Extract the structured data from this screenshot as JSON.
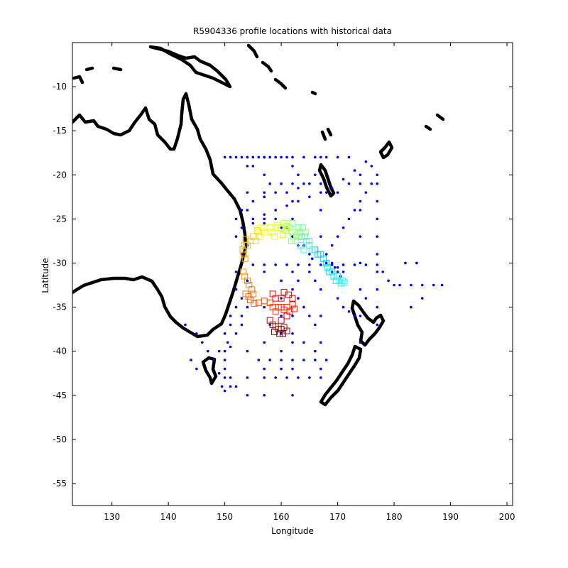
{
  "chart_data": {
    "type": "scatter",
    "title": "R5904336 profile locations with historical data",
    "xlabel": "Longitude",
    "ylabel": "Latitude",
    "xlim": [
      123,
      201
    ],
    "ylim": [
      -57.5,
      -5
    ],
    "xticks": [
      130,
      140,
      150,
      160,
      170,
      180,
      190,
      200
    ],
    "yticks": [
      -10,
      -15,
      -20,
      -25,
      -30,
      -35,
      -40,
      -45,
      -50,
      -55
    ],
    "grid": false,
    "series": [
      {
        "marker": "dot",
        "color": "#0000ff",
        "points": [
          [
            150,
            -18
          ],
          [
            151,
            -18
          ],
          [
            152,
            -18
          ],
          [
            153,
            -18
          ],
          [
            154,
            -18
          ],
          [
            155,
            -18
          ],
          [
            156,
            -18
          ],
          [
            157,
            -18
          ],
          [
            158,
            -18
          ],
          [
            159,
            -18
          ],
          [
            160,
            -18
          ],
          [
            161,
            -18
          ],
          [
            162,
            -18
          ],
          [
            164,
            -18
          ],
          [
            166,
            -18
          ],
          [
            168,
            -18
          ],
          [
            170,
            -18
          ],
          [
            172,
            -18
          ],
          [
            155,
            -19
          ],
          [
            157,
            -20
          ],
          [
            158,
            -21
          ],
          [
            160,
            -21
          ],
          [
            162,
            -19
          ],
          [
            163,
            -20
          ],
          [
            164,
            -21
          ],
          [
            166,
            -20
          ],
          [
            168,
            -22
          ],
          [
            170,
            -22
          ],
          [
            172,
            -21
          ],
          [
            174,
            -20
          ],
          [
            176,
            -19
          ],
          [
            177,
            -20
          ],
          [
            176,
            -21
          ],
          [
            175,
            -22
          ],
          [
            174,
            -23
          ],
          [
            173,
            -24
          ],
          [
            172,
            -25
          ],
          [
            171,
            -26
          ],
          [
            170,
            -27
          ],
          [
            169,
            -28
          ],
          [
            168,
            -29
          ],
          [
            177,
            -21
          ],
          [
            177,
            -23
          ],
          [
            177,
            -25
          ],
          [
            177,
            -27
          ],
          [
            177,
            -29
          ],
          [
            177,
            -31
          ],
          [
            177,
            -33
          ],
          [
            177,
            -35
          ],
          [
            177,
            -37
          ],
          [
            174,
            -21
          ],
          [
            174,
            -24
          ],
          [
            174,
            -27
          ],
          [
            174,
            -30
          ],
          [
            174,
            -33
          ],
          [
            174,
            -36
          ],
          [
            174,
            -39
          ],
          [
            167,
            -18
          ],
          [
            167,
            -21
          ],
          [
            167,
            -24
          ],
          [
            167,
            -27
          ],
          [
            167,
            -33
          ],
          [
            167,
            -36
          ],
          [
            167,
            -39
          ],
          [
            167,
            -42
          ],
          [
            162,
            -21
          ],
          [
            162,
            -23
          ],
          [
            162,
            -25
          ],
          [
            162,
            -33
          ],
          [
            162,
            -36
          ],
          [
            162,
            -39
          ],
          [
            162,
            -42
          ],
          [
            162,
            -45
          ],
          [
            157,
            -18
          ],
          [
            157,
            -22
          ],
          [
            157,
            -25
          ],
          [
            157,
            -31
          ],
          [
            157,
            -35
          ],
          [
            157,
            -39
          ],
          [
            157,
            -42
          ],
          [
            157,
            -45
          ],
          [
            154,
            -19
          ],
          [
            154,
            -22
          ],
          [
            154,
            -24
          ],
          [
            154,
            -40
          ],
          [
            154,
            -43
          ],
          [
            154,
            -45
          ],
          [
            153,
            -24
          ],
          [
            155,
            -23
          ],
          [
            157,
            -22.5
          ],
          [
            159,
            -22
          ],
          [
            161,
            -22
          ],
          [
            163,
            -21.5
          ],
          [
            165,
            -21
          ],
          [
            155,
            -25
          ],
          [
            157,
            -24.5
          ],
          [
            159,
            -24
          ],
          [
            161,
            -23.5
          ],
          [
            163,
            -23
          ],
          [
            165,
            -22.5
          ],
          [
            167,
            -22
          ],
          [
            169,
            -21.5
          ],
          [
            171,
            -20.5
          ],
          [
            173,
            -19.5
          ],
          [
            175,
            -18.5
          ],
          [
            153,
            -26
          ],
          [
            155,
            -25.5
          ],
          [
            157,
            -25.5
          ],
          [
            159,
            -25
          ],
          [
            155,
            -30.2
          ],
          [
            157,
            -30.2
          ],
          [
            159,
            -30.2
          ],
          [
            161,
            -30.2
          ],
          [
            163,
            -30.2
          ],
          [
            165,
            -30.2
          ],
          [
            167,
            -30.2
          ],
          [
            169,
            -30.2
          ],
          [
            171,
            -30.2
          ],
          [
            173,
            -30.2
          ],
          [
            175,
            -30.2
          ],
          [
            177,
            -30.2
          ],
          [
            178,
            -31
          ],
          [
            179,
            -32
          ],
          [
            180,
            -32.5
          ],
          [
            181,
            -32.5
          ],
          [
            183,
            -32.5
          ],
          [
            185,
            -32.5
          ],
          [
            187,
            -32.5
          ],
          [
            188.5,
            -32.5
          ],
          [
            182,
            -30
          ],
          [
            184,
            -30
          ],
          [
            183,
            -35
          ],
          [
            185,
            -34
          ],
          [
            160,
            -32
          ],
          [
            160,
            -34
          ],
          [
            160,
            -36
          ],
          [
            160,
            -38
          ],
          [
            160,
            -40
          ],
          [
            160,
            -42
          ],
          [
            157,
            -43
          ],
          [
            159,
            -43
          ],
          [
            161,
            -43
          ],
          [
            163,
            -43
          ],
          [
            165,
            -43
          ],
          [
            167,
            -43
          ],
          [
            156,
            -41
          ],
          [
            158,
            -41
          ],
          [
            160,
            -41
          ],
          [
            162,
            -41
          ],
          [
            164,
            -41
          ],
          [
            166,
            -41
          ],
          [
            168,
            -41
          ],
          [
            158,
            -37
          ],
          [
            160,
            -38
          ],
          [
            162,
            -38
          ],
          [
            164,
            -39
          ],
          [
            166,
            -40
          ],
          [
            152,
            -35
          ],
          [
            151,
            -36
          ],
          [
            151,
            -37
          ],
          [
            150,
            -38
          ],
          [
            150.5,
            -39
          ],
          [
            151,
            -39.5
          ],
          [
            152,
            -38
          ],
          [
            153,
            -37
          ],
          [
            153,
            -36
          ],
          [
            154,
            -35
          ],
          [
            150,
            -40
          ],
          [
            150,
            -41
          ],
          [
            150,
            -42
          ],
          [
            149,
            -42.5
          ],
          [
            150,
            -43
          ],
          [
            151,
            -43
          ],
          [
            149.5,
            -44
          ],
          [
            150,
            -44.5
          ],
          [
            151,
            -44
          ],
          [
            152,
            -44
          ],
          [
            145,
            -38
          ],
          [
            146,
            -39
          ],
          [
            147,
            -40
          ],
          [
            148,
            -41
          ],
          [
            149,
            -40
          ],
          [
            143,
            -37
          ],
          [
            144,
            -41
          ],
          [
            145,
            -42
          ],
          [
            152,
            -31
          ],
          [
            152,
            -33
          ],
          [
            153,
            -34
          ],
          [
            154,
            -32
          ],
          [
            154,
            -28
          ],
          [
            153,
            -29
          ],
          [
            152,
            -27
          ],
          [
            152,
            -25
          ],
          [
            160,
            -26
          ],
          [
            161,
            -26
          ],
          [
            162,
            -27
          ],
          [
            163,
            -28
          ],
          [
            164,
            -28
          ],
          [
            165,
            -29
          ],
          [
            165.5,
            -29.5
          ],
          [
            168,
            -30
          ],
          [
            169,
            -30
          ],
          [
            170,
            -30.5
          ],
          [
            170,
            -31
          ],
          [
            170.5,
            -31.5
          ],
          [
            171,
            -31
          ],
          [
            169,
            -31
          ],
          [
            169.5,
            -30.5
          ],
          [
            163,
            -34
          ],
          [
            164,
            -35
          ],
          [
            165,
            -36
          ],
          [
            166,
            -37
          ],
          [
            170,
            -34
          ],
          [
            171,
            -35
          ],
          [
            172,
            -35.5
          ],
          [
            173,
            -36
          ],
          [
            175,
            -34
          ],
          [
            162,
            -31
          ],
          [
            163,
            -32
          ],
          [
            165,
            -31
          ],
          [
            166,
            -32
          ]
        ]
      },
      {
        "marker": "square",
        "colormap": "jet",
        "points": [
          [
            166,
            -28.5
          ],
          [
            166.5,
            -29
          ],
          [
            167,
            -29
          ],
          [
            167.5,
            -29.5
          ],
          [
            168,
            -30
          ],
          [
            168.2,
            -30.5
          ],
          [
            168.5,
            -31
          ],
          [
            169,
            -31
          ],
          [
            169.3,
            -31.5
          ],
          [
            169.7,
            -32
          ],
          [
            170,
            -31.5
          ],
          [
            170.3,
            -32
          ],
          [
            170.6,
            -32.3
          ],
          [
            170.9,
            -32
          ],
          [
            171.2,
            -32.2
          ],
          [
            165,
            -28
          ],
          [
            165.5,
            -28.5
          ],
          [
            164.5,
            -27.5
          ],
          [
            164,
            -28.5
          ],
          [
            163.5,
            -28
          ],
          [
            163.6,
            -27
          ],
          [
            164.2,
            -27
          ],
          [
            165,
            -27.5
          ],
          [
            163,
            -26
          ],
          [
            163,
            -27
          ],
          [
            162.5,
            -27.5
          ],
          [
            163.3,
            -26.5
          ],
          [
            163.8,
            -26
          ],
          [
            164.3,
            -26.5
          ],
          [
            162,
            -25.5
          ],
          [
            162,
            -26.5
          ],
          [
            161.5,
            -26
          ],
          [
            162.2,
            -27
          ],
          [
            161.8,
            -27.5
          ],
          [
            162.7,
            -26.8
          ],
          [
            160.5,
            -25.5
          ],
          [
            160,
            -26
          ],
          [
            160.8,
            -26.3
          ],
          [
            161,
            -25.8
          ],
          [
            160.3,
            -26.8
          ],
          [
            159,
            -26
          ],
          [
            158.5,
            -26.5
          ],
          [
            159.3,
            -25.7
          ],
          [
            158,
            -26
          ],
          [
            157.5,
            -26.5
          ],
          [
            158.8,
            -27
          ],
          [
            157,
            -26.5
          ],
          [
            156.5,
            -26
          ],
          [
            156,
            -26.5
          ],
          [
            156.2,
            -27
          ],
          [
            155.8,
            -26.3
          ],
          [
            155.5,
            -27.5
          ],
          [
            155,
            -27
          ],
          [
            154.5,
            -27.5
          ],
          [
            154,
            -28
          ],
          [
            153.7,
            -27.3
          ],
          [
            153.5,
            -28
          ],
          [
            153.2,
            -28.5
          ],
          [
            153.4,
            -29
          ],
          [
            153.6,
            -29.5
          ],
          [
            153.3,
            -31
          ],
          [
            153.5,
            -31.5
          ],
          [
            154,
            -32
          ],
          [
            154.3,
            -32.5
          ],
          [
            154.8,
            -33
          ],
          [
            155,
            -33.5
          ],
          [
            153.7,
            -33.5
          ],
          [
            154.2,
            -33.8
          ],
          [
            154.5,
            -34.2
          ],
          [
            155.2,
            -34.6
          ],
          [
            156,
            -34.5
          ],
          [
            157,
            -34.3
          ],
          [
            158,
            -34.5
          ],
          [
            158.5,
            -35
          ],
          [
            159,
            -35.5
          ],
          [
            159.5,
            -35
          ],
          [
            160,
            -35
          ],
          [
            160.5,
            -35.3
          ],
          [
            161,
            -35
          ],
          [
            161.5,
            -35.5
          ],
          [
            162,
            -34.7
          ],
          [
            162.3,
            -35.2
          ],
          [
            158.5,
            -33.5
          ],
          [
            159,
            -34
          ],
          [
            160,
            -34
          ],
          [
            160.5,
            -33.3
          ],
          [
            161.3,
            -33.6
          ],
          [
            162,
            -34
          ],
          [
            161,
            -36
          ],
          [
            160,
            -36.5
          ],
          [
            158,
            -36.5
          ],
          [
            158.5,
            -37
          ],
          [
            159,
            -37.2
          ],
          [
            159.5,
            -37.5
          ],
          [
            160,
            -37.5
          ],
          [
            160.5,
            -37.3
          ],
          [
            161,
            -37.7
          ],
          [
            158.8,
            -37.8
          ],
          [
            159.7,
            -38
          ],
          [
            160.3,
            -38
          ]
        ]
      }
    ]
  }
}
